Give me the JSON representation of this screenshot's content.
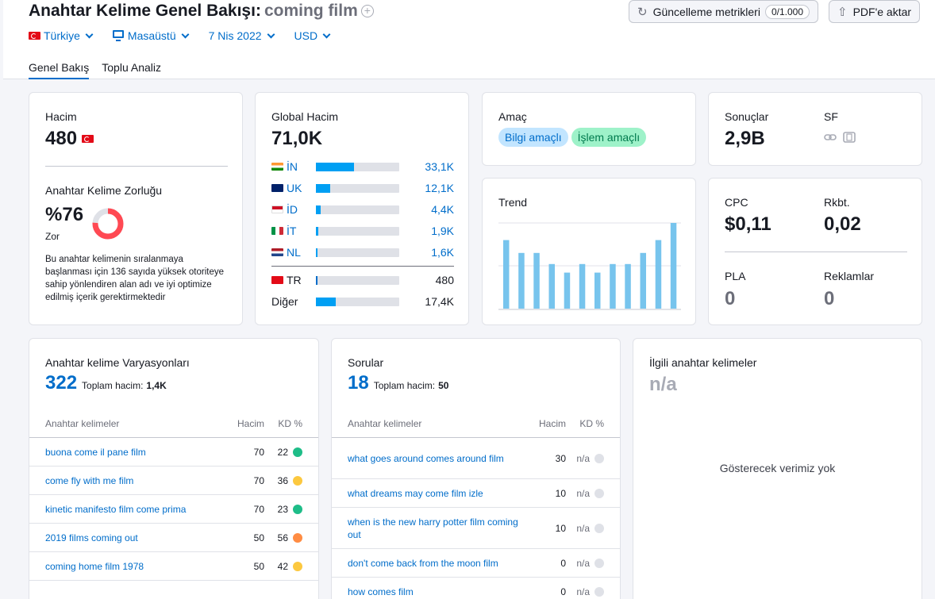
{
  "header": {
    "title_prefix": "Anahtar Kelime Genel Bakışı:",
    "keyword": "coming film",
    "update_btn": "Güncelleme metrikleri",
    "update_count": "0/1.000",
    "pdf_btn": "PDF'e aktar"
  },
  "filters": {
    "country": "Türkiye",
    "device": "Masaüstü",
    "date": "7 Nis 2022",
    "currency": "USD"
  },
  "tabs": [
    "Genel Bakış",
    "Toplu Analiz"
  ],
  "volume": {
    "label": "Hacim",
    "value": "480",
    "kd_label": "Anahtar Kelime Zorluğu",
    "kd_value": "%76",
    "kd_level": "Zor",
    "kd_percent": 76,
    "kd_desc": "Bu anahtar kelimenin sıralanmaya başlanması için 136 sayıda yüksek otoriteye sahip yönlendiren alan adı ve iyi optimize edilmiş içerik gerektirmektedir"
  },
  "global": {
    "label": "Global Hacim",
    "value": "71,0K",
    "rows": [
      {
        "code": "İN",
        "value": "33,1K",
        "pct": 46
      },
      {
        "code": "UK",
        "value": "12,1K",
        "pct": 17
      },
      {
        "code": "İD",
        "value": "4,4K",
        "pct": 6
      },
      {
        "code": "İT",
        "value": "1,9K",
        "pct": 3
      },
      {
        "code": "NL",
        "value": "1,6K",
        "pct": 2
      }
    ],
    "local": {
      "code": "TR",
      "value": "480",
      "pct": 1
    },
    "other": {
      "code": "Diğer",
      "value": "17,4K",
      "pct": 24
    }
  },
  "intent": {
    "label": "Amaç",
    "tags": [
      "Bilgi amaçlı",
      "İşlem amaçlı"
    ],
    "colors": [
      "#c2e5ff",
      "#9ef2c9"
    ]
  },
  "trend": {
    "label": "Trend",
    "values": [
      0.8,
      0.65,
      0.65,
      0.52,
      0.42,
      0.52,
      0.42,
      0.52,
      0.52,
      0.65,
      0.8,
      1.0
    ],
    "color": "#77c4ed"
  },
  "results": {
    "label": "Sonuçlar",
    "value": "2,9B",
    "sf_label": "SF",
    "sf_icons": [
      "link-icon",
      "video-icon"
    ]
  },
  "cpc": {
    "cpc_label": "CPC",
    "cpc_value": "$0,11",
    "comp_label": "Rkbt.",
    "comp_value": "0,02",
    "pla_label": "PLA",
    "pla_value": "0",
    "ads_label": "Reklamlar",
    "ads_value": "0"
  },
  "variations": {
    "title": "Anahtar kelime Varyasyonları",
    "count": "322",
    "total_label": "Toplam hacim:",
    "total_value": "1,4K",
    "col_kw": "Anahtar kelimeler",
    "col_vol": "Hacim",
    "col_kd": "KD %",
    "rows": [
      {
        "kw": "buona come il pane film",
        "vol": "70",
        "kd": "22",
        "color": "#1ebd88"
      },
      {
        "kw": "come fly with me film",
        "vol": "70",
        "kd": "36",
        "color": "#fcc83f"
      },
      {
        "kw": "kinetic manifesto film come prima",
        "vol": "70",
        "kd": "23",
        "color": "#1ebd88"
      },
      {
        "kw": "2019 films coming out",
        "vol": "50",
        "kd": "56",
        "color": "#ff8c43"
      },
      {
        "kw": "coming home film 1978",
        "vol": "50",
        "kd": "42",
        "color": "#fcc83f"
      }
    ]
  },
  "questions": {
    "title": "Sorular",
    "count": "18",
    "total_label": "Toplam hacim:",
    "total_value": "50",
    "col_kw": "Anahtar kelimeler",
    "col_vol": "Hacim",
    "col_kd": "KD %",
    "rows": [
      {
        "kw": "what goes around comes around film",
        "vol": "30",
        "kd": "n/a"
      },
      {
        "kw": "what dreams may come film izle",
        "vol": "10",
        "kd": "n/a"
      },
      {
        "kw": "when is the new harry potter film coming out",
        "vol": "10",
        "kd": "n/a"
      },
      {
        "kw": "don't come back from the moon film",
        "vol": "0",
        "kd": "n/a"
      },
      {
        "kw": "how comes film",
        "vol": "0",
        "kd": "n/a"
      }
    ]
  },
  "related": {
    "title": "İlgili anahtar kelimeler",
    "value": "n/a",
    "empty": "Gösterecek verimiz yok"
  }
}
